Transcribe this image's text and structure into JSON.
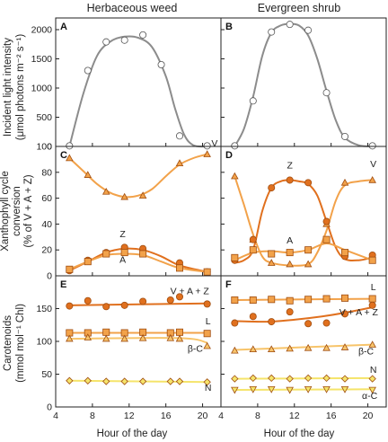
{
  "column_titles": [
    "Herbaceous weed",
    "Evergreen shrub"
  ],
  "row_titles": [
    [
      "Incident light intensity",
      "(μmol photons m⁻² s⁻¹)"
    ],
    [
      "Xanthophyll cycle",
      "conversion",
      "(% of V + A + Z)"
    ],
    [
      "Carotenoids",
      "(mmol mol⁻¹ Chl)"
    ]
  ],
  "xlabel": "Hour of the day",
  "colors": {
    "gray": "#8c8c8c",
    "orange_dark": "#e0701e",
    "orange": "#f2a24a",
    "orange_light": "#f7c46a",
    "yellow": "#f5e46a",
    "edge": "#a04d10"
  },
  "chart_data": [
    {
      "panel": "A",
      "type": "scatter",
      "xlim": [
        4,
        22
      ],
      "ylim": [
        0,
        2200
      ],
      "xticks": [
        4,
        8,
        12,
        16,
        20
      ],
      "yticks": [
        0,
        500,
        1000,
        1500,
        2000
      ],
      "series": [
        {
          "marker": "circle",
          "color": "#ffffff",
          "line": "#8c8c8c",
          "x": [
            5.5,
            7.5,
            9.5,
            11.5,
            13.5,
            15.5,
            17.5,
            20.5
          ],
          "y": [
            10,
            1300,
            1790,
            1820,
            1910,
            1400,
            180,
            10
          ],
          "fit_x": [
            5.5,
            7,
            8.5,
            10,
            11.5,
            13,
            14.5,
            16,
            17,
            18,
            19,
            20.5
          ],
          "fit_y": [
            0,
            900,
            1550,
            1800,
            1880,
            1860,
            1700,
            1200,
            650,
            200,
            20,
            0
          ]
        }
      ],
      "annotations": []
    },
    {
      "panel": "B",
      "type": "scatter",
      "xlim": [
        4,
        22
      ],
      "ylim": [
        0,
        2200
      ],
      "xticks": [
        4,
        8,
        12,
        16,
        20
      ],
      "yticks": [
        0,
        500,
        1000,
        1500,
        2000
      ],
      "series": [
        {
          "marker": "circle",
          "color": "#ffffff",
          "line": "#8c8c8c",
          "x": [
            5.5,
            7.5,
            9.5,
            11.5,
            13.5,
            15.5,
            17.5,
            20.5
          ],
          "y": [
            10,
            780,
            1960,
            2090,
            1990,
            920,
            170,
            10
          ],
          "fit_x": [
            5.5,
            6.5,
            7.5,
            8.5,
            9.5,
            10.5,
            11.5,
            12.5,
            13.5,
            14.5,
            15.5,
            16.5,
            17.5,
            19,
            20.5
          ],
          "fit_y": [
            0,
            300,
            850,
            1550,
            1950,
            2070,
            2100,
            2070,
            1900,
            1500,
            950,
            450,
            150,
            20,
            0
          ]
        }
      ],
      "annotations": []
    },
    {
      "panel": "C",
      "type": "scatter",
      "xlim": [
        4,
        22
      ],
      "ylim": [
        0,
        100
      ],
      "xticks": [
        4,
        8,
        12,
        16,
        20
      ],
      "yticks": [
        0,
        20,
        40,
        60,
        80,
        100
      ],
      "series": [
        {
          "name": "V",
          "marker": "triangle",
          "color": "#f2a24a",
          "line": "#f2a24a",
          "x": [
            5.5,
            7.5,
            9.5,
            11.5,
            13.5,
            17.5,
            20.5
          ],
          "y": [
            91,
            78,
            65,
            61,
            62,
            87,
            94
          ],
          "fit_x": [
            5.5,
            7,
            8.5,
            10,
            11.5,
            13,
            14.5,
            16,
            17.5,
            19,
            20.5
          ],
          "fit_y": [
            91,
            81,
            71,
            64,
            61,
            62,
            67,
            77,
            86,
            91,
            94
          ]
        },
        {
          "name": "Z",
          "marker": "circle",
          "color": "#e0701e",
          "line": "#e0701e",
          "x": [
            5.5,
            7.5,
            9.5,
            11.5,
            13.5,
            17.5,
            20.5
          ],
          "y": [
            4,
            12,
            18,
            22,
            21,
            10,
            3
          ],
          "fit_x": [
            5.5,
            7.5,
            9.5,
            11.5,
            13.5,
            15.5,
            17.5,
            20.5
          ],
          "fit_y": [
            4,
            11,
            18,
            21,
            20,
            15,
            8,
            3
          ]
        },
        {
          "name": "A",
          "marker": "square",
          "color": "#f2a24a",
          "line": "#f2a24a",
          "x": [
            5.5,
            7.5,
            9.5,
            11.5,
            13.5,
            17.5,
            20.5
          ],
          "y": [
            5,
            11,
            17,
            18,
            17,
            6,
            3
          ],
          "fit_x": [
            5.5,
            7.5,
            9.5,
            11.5,
            13.5,
            15.5,
            17.5,
            20.5
          ],
          "fit_y": [
            5,
            11,
            16,
            17,
            16,
            11,
            6,
            3
          ]
        }
      ],
      "annotations": [
        {
          "text": "V",
          "x": 21.3,
          "y": 100
        },
        {
          "text": "Z",
          "x": 11.3,
          "y": 30
        },
        {
          "text": "A",
          "x": 11.3,
          "y": 10
        }
      ]
    },
    {
      "panel": "D",
      "type": "scatter",
      "xlim": [
        4,
        22
      ],
      "ylim": [
        0,
        100
      ],
      "xticks": [
        4,
        8,
        12,
        16,
        20
      ],
      "yticks": [
        0,
        20,
        40,
        60,
        80,
        100
      ],
      "series": [
        {
          "name": "V",
          "marker": "triangle",
          "color": "#f2a24a",
          "line": "#f2a24a",
          "x": [
            5.5,
            7.5,
            9.5,
            11.5,
            13.5,
            15.5,
            17.5,
            20.5
          ],
          "y": [
            77,
            28,
            10,
            9,
            9,
            40,
            72,
            74
          ],
          "fit_x": [
            5.5,
            6.5,
            7.5,
            8.5,
            9.5,
            11.5,
            13.5,
            14.5,
            15.5,
            16.5,
            17.5,
            19,
            20.5
          ],
          "fit_y": [
            77,
            55,
            32,
            15,
            10,
            8,
            9,
            18,
            35,
            58,
            70,
            73,
            74
          ]
        },
        {
          "name": "Z",
          "marker": "circle",
          "color": "#e0701e",
          "line": "#e0701e",
          "x": [
            5.5,
            7.5,
            9.5,
            11.5,
            13.5,
            15.5,
            17.5,
            20.5
          ],
          "y": [
            12,
            28,
            68,
            74,
            72,
            42,
            15,
            16
          ],
          "fit_x": [
            5.5,
            6.5,
            7.5,
            8.5,
            9.5,
            10.5,
            11.5,
            12.5,
            13.5,
            14.5,
            15.5,
            16.5,
            17.5,
            19,
            20.5
          ],
          "fit_y": [
            10,
            12,
            20,
            50,
            68,
            73,
            74,
            73,
            71,
            62,
            42,
            22,
            13,
            12,
            14
          ]
        },
        {
          "name": "A",
          "marker": "square",
          "color": "#f2a24a",
          "line": "#f2a24a",
          "x": [
            5.5,
            7.5,
            9.5,
            11.5,
            13.5,
            15.5,
            17.5,
            20.5
          ],
          "y": [
            14,
            20,
            17,
            18,
            20,
            28,
            18,
            12
          ],
          "fit_x": [
            5.5,
            7.5,
            9.5,
            11.5,
            13.5,
            15.5,
            17.5,
            20.5
          ],
          "fit_y": [
            12,
            18,
            19,
            18,
            20,
            25,
            20,
            12
          ]
        }
      ],
      "annotations": [
        {
          "text": "Z",
          "x": 11.5,
          "y": 83
        },
        {
          "text": "V",
          "x": 20.6,
          "y": 84
        },
        {
          "text": "A",
          "x": 11.5,
          "y": 25
        }
      ]
    },
    {
      "panel": "E",
      "type": "scatter",
      "xlim": [
        4,
        22
      ],
      "ylim": [
        0,
        200
      ],
      "xticks": [
        4,
        8,
        12,
        16,
        20
      ],
      "yticks": [
        0,
        50,
        100,
        150
      ],
      "series": [
        {
          "name": "V + A + Z",
          "marker": "circle",
          "color": "#e0701e",
          "line": "#e0701e",
          "x": [
            5.5,
            7.5,
            9.5,
            11.5,
            13.5,
            16.5,
            17.5,
            20.5
          ],
          "y": [
            154,
            162,
            153,
            155,
            161,
            163,
            168,
            157
          ],
          "fit_x": [
            5.5,
            20.5
          ],
          "fit_y": [
            155,
            158
          ]
        },
        {
          "name": "L",
          "marker": "square",
          "color": "#f2a24a",
          "line": "#f2a24a",
          "x": [
            5.5,
            7.5,
            9.5,
            11.5,
            13.5,
            16.5,
            17.5,
            20.5
          ],
          "y": [
            113,
            113,
            114,
            113,
            114,
            113,
            114,
            112
          ],
          "fit_x": [
            5.5,
            20.5
          ],
          "fit_y": [
            113,
            113
          ]
        },
        {
          "name": "β-C",
          "marker": "triangle",
          "color": "#f7c46a",
          "line": "#f7c46a",
          "x": [
            5.5,
            7.5,
            9.5,
            11.5,
            13.5,
            16.5,
            17.5,
            20.5
          ],
          "y": [
            104,
            106,
            104,
            104,
            105,
            105,
            104,
            93
          ],
          "fit_x": [
            5.5,
            17.5,
            20.5
          ],
          "fit_y": [
            104,
            105,
            98
          ]
        },
        {
          "name": "N",
          "marker": "diamond",
          "color": "#f5e46a",
          "line": "#f5e46a",
          "x": [
            5.5,
            7.5,
            9.5,
            11.5,
            13.5,
            16.5,
            17.5,
            20.5
          ],
          "y": [
            40,
            40,
            39,
            39,
            39,
            39,
            39,
            38
          ],
          "fit_x": [
            5.5,
            20.5
          ],
          "fit_y": [
            40,
            38
          ]
        }
      ],
      "annotations": [
        {
          "text": "V + A + Z",
          "x": 18.6,
          "y": 172
        },
        {
          "text": "L",
          "x": 20.6,
          "y": 126
        },
        {
          "text": "β-C",
          "x": 19.2,
          "y": 84
        },
        {
          "text": "N",
          "x": 20.6,
          "y": 25
        }
      ]
    },
    {
      "panel": "F",
      "type": "scatter",
      "xlim": [
        4,
        22
      ],
      "ylim": [
        0,
        200
      ],
      "xticks": [
        4,
        8,
        12,
        16,
        20
      ],
      "yticks": [
        0,
        50,
        100,
        150
      ],
      "series": [
        {
          "name": "L",
          "marker": "square",
          "color": "#f2a24a",
          "line": "#f2a24a",
          "x": [
            5.5,
            7.5,
            9.5,
            11.5,
            13.5,
            15.5,
            17.5,
            20.5
          ],
          "y": [
            163,
            163,
            164,
            162,
            164,
            165,
            166,
            165
          ],
          "fit_x": [
            5.5,
            20.5
          ],
          "fit_y": [
            163,
            165
          ]
        },
        {
          "name": "V + A + Z",
          "marker": "circle",
          "color": "#e0701e",
          "line": "#e0701e",
          "x": [
            5.5,
            7.5,
            9.5,
            11.5,
            13.5,
            15.5,
            17.5,
            20.5
          ],
          "y": [
            128,
            138,
            130,
            145,
            127,
            128,
            142,
            155
          ],
          "fit_x": [
            5.5,
            9,
            12,
            15,
            18,
            20.5
          ],
          "fit_y": [
            131,
            130,
            133,
            138,
            145,
            152
          ]
        },
        {
          "name": "β-C",
          "marker": "triangle",
          "color": "#f7c46a",
          "line": "#f7c46a",
          "x": [
            5.5,
            7.5,
            9.5,
            11.5,
            13.5,
            15.5,
            17.5,
            20.5
          ],
          "y": [
            86,
            88,
            88,
            89,
            90,
            90,
            91,
            95
          ],
          "fit_x": [
            5.5,
            20.5
          ],
          "fit_y": [
            87,
            95
          ]
        },
        {
          "name": "N",
          "marker": "diamond",
          "color": "#f5e46a",
          "line": "#f5e46a",
          "x": [
            5.5,
            7.5,
            9.5,
            11.5,
            13.5,
            15.5,
            17.5,
            20.5
          ],
          "y": [
            43,
            44,
            44,
            43,
            44,
            44,
            43,
            43
          ],
          "fit_x": [
            5.5,
            20.5
          ],
          "fit_y": [
            43,
            44
          ]
        },
        {
          "name": "α-C",
          "marker": "triangle-down",
          "color": "#f5e46a",
          "line": "#f5e46a",
          "x": [
            5.5,
            7.5,
            9.5,
            11.5,
            13.5,
            15.5,
            17.5,
            20.5
          ],
          "y": [
            26,
            27,
            27,
            26,
            27,
            27,
            27,
            26
          ],
          "fit_x": [
            5.5,
            20.5
          ],
          "fit_y": [
            26,
            27
          ]
        }
      ],
      "annotations": [
        {
          "text": "L",
          "x": 20.6,
          "y": 178
        },
        {
          "text": "V + A + Z",
          "x": 19.0,
          "y": 140
        },
        {
          "text": "β-C",
          "x": 19.8,
          "y": 80
        },
        {
          "text": "N",
          "x": 20.6,
          "y": 52
        },
        {
          "text": "α-C",
          "x": 20.2,
          "y": 12
        }
      ]
    }
  ]
}
